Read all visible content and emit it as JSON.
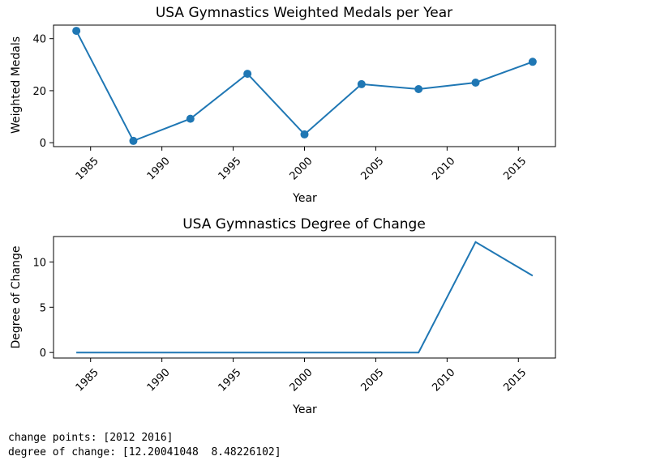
{
  "chart_data": [
    {
      "type": "line",
      "title": "USA Gymnastics Weighted Medals per Year",
      "xlabel": "Year",
      "ylabel": "Weighted Medals",
      "markers": true,
      "color": "#1f77b4",
      "x": [
        1984,
        1988,
        1992,
        1996,
        2000,
        2004,
        2008,
        2012,
        2016
      ],
      "values": [
        43,
        0.7,
        9.2,
        26.5,
        3.2,
        22.5,
        20.6,
        23.1,
        31.1
      ],
      "xlim": [
        1982.4,
        2017.6
      ],
      "ylim": [
        -1.5,
        45.2
      ],
      "xticks": [
        1985,
        1990,
        1995,
        2000,
        2005,
        2010,
        2015
      ],
      "yticks": [
        0,
        20,
        40
      ]
    },
    {
      "type": "line",
      "title": "USA Gymnastics Degree of Change",
      "xlabel": "Year",
      "ylabel": "Degree of Change",
      "markers": false,
      "color": "#1f77b4",
      "x": [
        1984,
        1988,
        1992,
        1996,
        2000,
        2004,
        2008,
        2012,
        2016
      ],
      "values": [
        0,
        0,
        0,
        0,
        0,
        0,
        0,
        12.20041048,
        8.48226102
      ],
      "xlim": [
        1982.4,
        2017.6
      ],
      "ylim": [
        -0.61,
        12.81
      ],
      "xticks": [
        1985,
        1990,
        1995,
        2000,
        2005,
        2010,
        2015
      ],
      "yticks": [
        0,
        5,
        10
      ]
    }
  ],
  "output": {
    "line1": "change points: [2012 2016]",
    "line2": "degree of change: [12.20041048  8.48226102]"
  }
}
